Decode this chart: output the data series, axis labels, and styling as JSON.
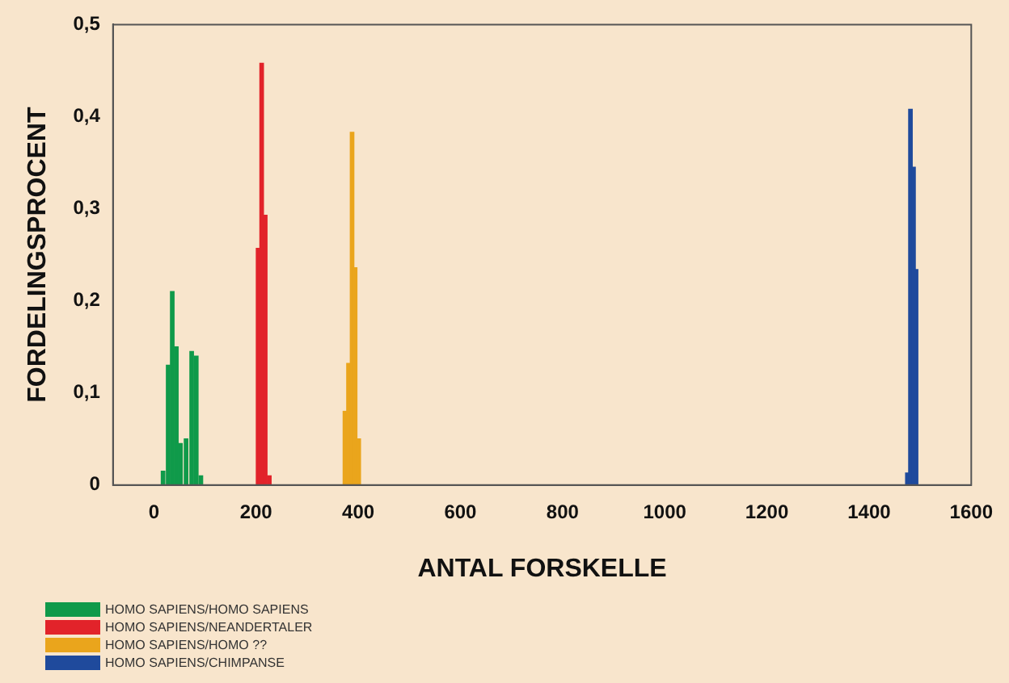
{
  "chart_data": {
    "type": "bar",
    "xlabel": "ANTAL FORSKELLE",
    "ylabel": "FORDELINGSPROCENT",
    "xlim": [
      -80,
      1600
    ],
    "xticks": [
      0,
      200,
      400,
      600,
      800,
      1000,
      1200,
      1400,
      1600
    ],
    "ylim": [
      0,
      0.5
    ],
    "yticks": [
      {
        "value": 0,
        "label": "0"
      },
      {
        "value": 0.1,
        "label": "0,1"
      },
      {
        "value": 0.2,
        "label": "0,2"
      },
      {
        "value": 0.3,
        "label": "0,3"
      },
      {
        "value": 0.4,
        "label": "0,4"
      },
      {
        "value": 0.5,
        "label": "0,5"
      }
    ],
    "grid": false,
    "legend": "bottom left",
    "series": [
      {
        "name": "HOMO SAPIENS/HOMO SAPIENS",
        "color": "#0f9a4a",
        "x": [
          18,
          28,
          36,
          44,
          52,
          63,
          74,
          83,
          92
        ],
        "values": [
          0.015,
          0.13,
          0.21,
          0.15,
          0.045,
          0.05,
          0.145,
          0.14,
          0.01
        ]
      },
      {
        "name": "HOMO SAPIENS/NEANDERTALER",
        "color": "#e2232a",
        "x": [
          204,
          211,
          218,
          226
        ],
        "values": [
          0.257,
          0.458,
          0.293,
          0.01
        ]
      },
      {
        "name": "HOMO SAPIENS/HOMO ??",
        "color": "#eaa51c",
        "x": [
          374,
          381,
          388,
          394,
          401
        ],
        "values": [
          0.08,
          0.132,
          0.383,
          0.236,
          0.05
        ]
      },
      {
        "name": "HOMO SAPIENS/CHIMPANSE",
        "color": "#1f4a9c",
        "x": [
          1475,
          1481,
          1487,
          1492
        ],
        "values": [
          0.013,
          0.408,
          0.345,
          0.234
        ]
      }
    ]
  }
}
